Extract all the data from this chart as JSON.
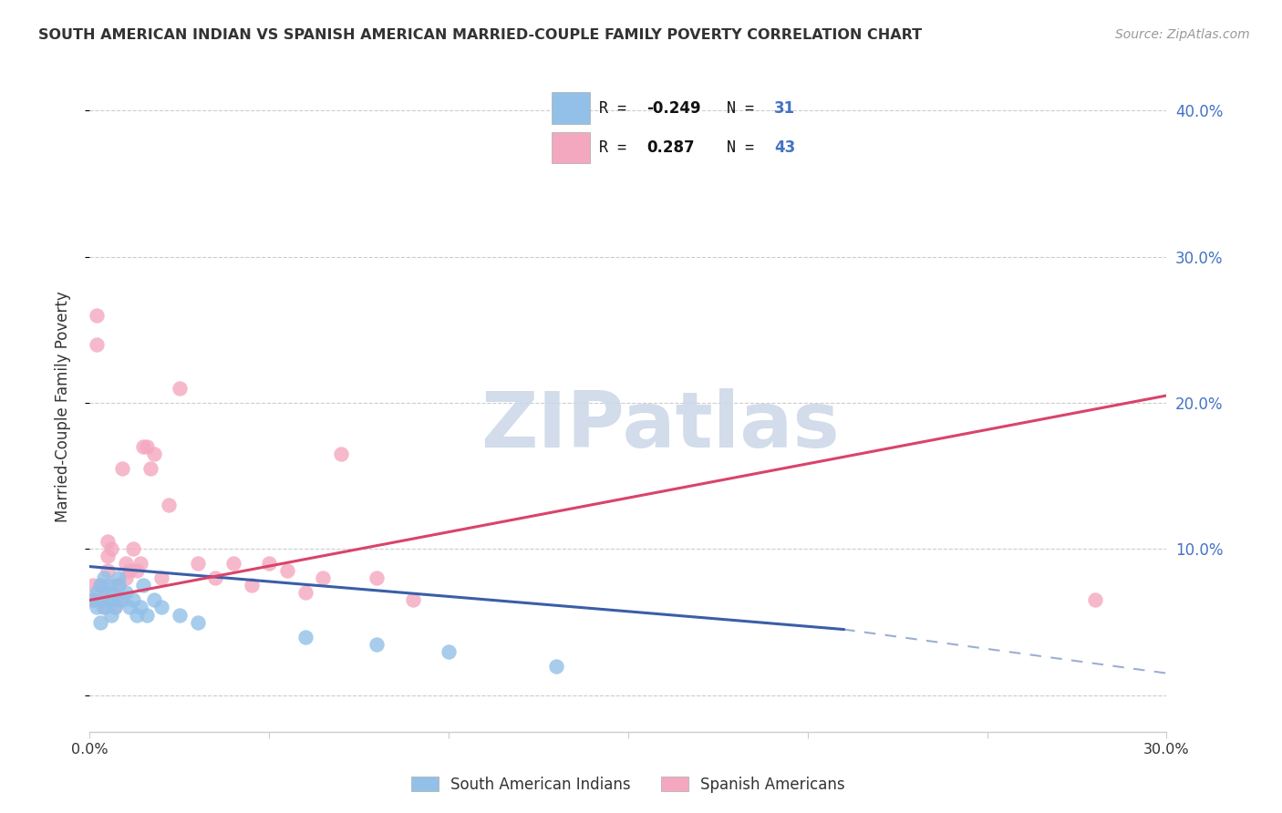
{
  "title": "SOUTH AMERICAN INDIAN VS SPANISH AMERICAN MARRIED-COUPLE FAMILY POVERTY CORRELATION CHART",
  "source": "Source: ZipAtlas.com",
  "ylabel": "Married-Couple Family Poverty",
  "xlim": [
    0.0,
    0.3
  ],
  "ylim": [
    -0.025,
    0.42
  ],
  "yticks": [
    0.0,
    0.1,
    0.2,
    0.3,
    0.4
  ],
  "xticks": [
    0.0,
    0.05,
    0.1,
    0.15,
    0.2,
    0.25,
    0.3
  ],
  "blue_R_val": "-0.249",
  "blue_N_val": "31",
  "pink_R_val": "0.287",
  "pink_N_val": "43",
  "blue_label": "South American Indians",
  "pink_label": "Spanish Americans",
  "blue_color": "#92c0e8",
  "pink_color": "#f4a8c0",
  "blue_line_color": "#3a5ea8",
  "pink_line_color": "#d9446a",
  "watermark_color": "#cdd9e8",
  "title_color": "#333333",
  "source_color": "#999999",
  "axis_label_color": "#4472c4",
  "text_color": "#333333",
  "grid_color": "#cccccc",
  "background_color": "#ffffff",
  "blue_x": [
    0.001,
    0.002,
    0.002,
    0.003,
    0.003,
    0.004,
    0.004,
    0.005,
    0.005,
    0.006,
    0.006,
    0.007,
    0.007,
    0.008,
    0.008,
    0.009,
    0.01,
    0.011,
    0.012,
    0.013,
    0.014,
    0.015,
    0.016,
    0.018,
    0.02,
    0.025,
    0.03,
    0.06,
    0.08,
    0.1,
    0.13
  ],
  "blue_y": [
    0.065,
    0.06,
    0.07,
    0.05,
    0.075,
    0.06,
    0.08,
    0.065,
    0.075,
    0.055,
    0.07,
    0.06,
    0.065,
    0.08,
    0.075,
    0.065,
    0.07,
    0.06,
    0.065,
    0.055,
    0.06,
    0.075,
    0.055,
    0.065,
    0.06,
    0.055,
    0.05,
    0.04,
    0.035,
    0.03,
    0.02
  ],
  "pink_x": [
    0.001,
    0.001,
    0.002,
    0.002,
    0.003,
    0.003,
    0.004,
    0.004,
    0.005,
    0.005,
    0.005,
    0.006,
    0.006,
    0.007,
    0.007,
    0.008,
    0.008,
    0.009,
    0.01,
    0.01,
    0.011,
    0.012,
    0.013,
    0.014,
    0.015,
    0.016,
    0.017,
    0.018,
    0.02,
    0.022,
    0.025,
    0.03,
    0.035,
    0.04,
    0.045,
    0.05,
    0.055,
    0.06,
    0.065,
    0.07,
    0.08,
    0.09,
    0.28
  ],
  "pink_y": [
    0.065,
    0.075,
    0.24,
    0.26,
    0.065,
    0.075,
    0.06,
    0.07,
    0.085,
    0.095,
    0.105,
    0.065,
    0.1,
    0.06,
    0.075,
    0.075,
    0.065,
    0.155,
    0.08,
    0.09,
    0.085,
    0.1,
    0.085,
    0.09,
    0.17,
    0.17,
    0.155,
    0.165,
    0.08,
    0.13,
    0.21,
    0.09,
    0.08,
    0.09,
    0.075,
    0.09,
    0.085,
    0.07,
    0.08,
    0.165,
    0.08,
    0.065,
    0.065
  ],
  "blue_line_x_start": 0.0,
  "blue_line_x_solid_end": 0.21,
  "blue_line_x_end": 0.3,
  "pink_line_x_start": 0.0,
  "pink_line_x_end": 0.3,
  "blue_line_y_start": 0.088,
  "blue_line_y_solid_end": 0.045,
  "blue_line_y_end": 0.015,
  "pink_line_y_start": 0.065,
  "pink_line_y_end": 0.205
}
